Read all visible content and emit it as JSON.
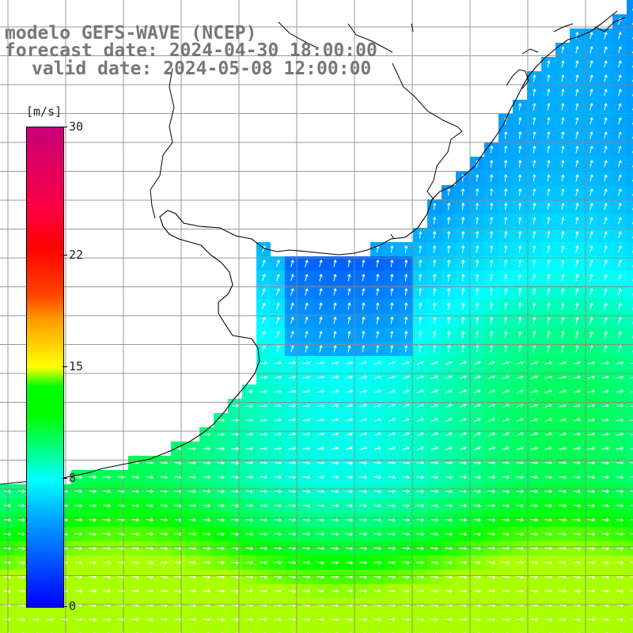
{
  "title": {
    "line1": "modelo GEFS-WAVE (NCEP)",
    "line2": "forecast date: 2024-04-30 18:00:00",
    "line3": "valid date: 2024-05-08 12:00:00"
  },
  "colorbar": {
    "unit": "[m/s]",
    "min": 0,
    "max": 30,
    "ticks": [
      {
        "value": 30,
        "label": "30"
      },
      {
        "value": 22,
        "label": "22"
      },
      {
        "value": 15,
        "label": "15"
      },
      {
        "value": 8,
        "label": "8"
      },
      {
        "value": 0,
        "label": "0"
      }
    ]
  },
  "field": {
    "variable": "wind speed",
    "arrow_color": "#ffffff",
    "land_color": "#ffffff",
    "coast_color": "#000000",
    "grid_color": "#888888"
  }
}
